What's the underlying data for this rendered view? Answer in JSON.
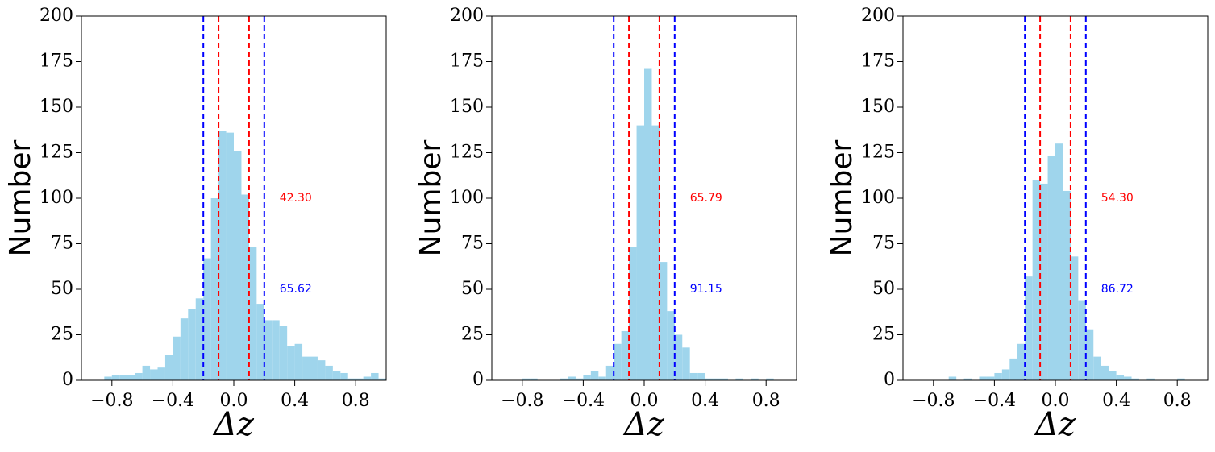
{
  "chart_data": [
    {
      "type": "histogram",
      "xlabel": "Δz",
      "ylabel": "Number",
      "color": "#9fd5ec",
      "bins": [
        -1,
        -0.95,
        -0.9,
        -0.85,
        -0.8,
        -0.75,
        -0.7,
        -0.65,
        -0.6,
        -0.55,
        -0.5,
        -0.45,
        -0.4,
        -0.35,
        -0.3,
        -0.25,
        -0.2,
        -0.15,
        -0.1,
        -0.05,
        0,
        0.05,
        0.1,
        0.15,
        0.2,
        0.25,
        0.3,
        0.35,
        0.4,
        0.45,
        0.5,
        0.55,
        0.6,
        0.65,
        0.7,
        0.75,
        0.8,
        0.85,
        0.9,
        0.95,
        1
      ],
      "values": [
        0,
        0,
        0,
        2,
        3,
        3,
        3,
        4,
        8,
        6,
        7,
        14,
        24,
        34,
        39,
        45,
        67,
        100,
        137,
        136,
        126,
        102,
        73,
        42,
        33,
        33,
        30,
        19,
        20,
        13,
        13,
        11,
        8,
        5,
        4,
        1,
        1,
        2,
        4,
        1
      ],
      "xlim": [
        -1,
        1
      ],
      "ylim": [
        0,
        200
      ],
      "xticks": [
        {
          "value": -0.8,
          "label": "−0.8"
        },
        {
          "value": -0.4,
          "label": "−0.4"
        },
        {
          "value": 0,
          "label": "0.0"
        },
        {
          "value": 0.4,
          "label": "0.4"
        },
        {
          "value": 0.8,
          "label": "0.8"
        }
      ],
      "yticks": [
        0,
        25,
        50,
        75,
        100,
        125,
        150,
        175,
        200
      ],
      "vlines": [
        {
          "x": -0.2,
          "color": "#0000ff"
        },
        {
          "x": -0.1,
          "color": "#ff0000"
        },
        {
          "x": 0.1,
          "color": "#ff0000"
        },
        {
          "x": 0.2,
          "color": "#0000ff"
        }
      ],
      "annotations": [
        {
          "text": "42.30",
          "x": 0.3,
          "y": 100,
          "color": "#ff0000"
        },
        {
          "text": "65.62",
          "x": 0.3,
          "y": 50,
          "color": "#0000ff"
        }
      ]
    },
    {
      "type": "histogram",
      "xlabel": "Δz",
      "ylabel": "Number",
      "color": "#9fd5ec",
      "bins": [
        -1,
        -0.95,
        -0.9,
        -0.85,
        -0.8,
        -0.75,
        -0.7,
        -0.65,
        -0.6,
        -0.55,
        -0.5,
        -0.45,
        -0.4,
        -0.35,
        -0.3,
        -0.25,
        -0.2,
        -0.15,
        -0.1,
        -0.05,
        0,
        0.05,
        0.1,
        0.15,
        0.2,
        0.25,
        0.3,
        0.35,
        0.4,
        0.45,
        0.5,
        0.55,
        0.6,
        0.65,
        0.7,
        0.75,
        0.8,
        0.85,
        0.9,
        0.95,
        1
      ],
      "values": [
        0,
        0,
        0,
        0,
        1,
        1,
        0,
        0,
        0,
        1,
        2,
        1,
        3,
        5,
        2,
        8,
        20,
        27,
        73,
        140,
        171,
        140,
        65,
        38,
        25,
        18,
        4,
        4,
        1,
        1,
        1,
        0,
        1,
        0,
        1,
        0,
        1,
        0,
        0,
        0
      ],
      "xlim": [
        -1,
        1
      ],
      "ylim": [
        0,
        200
      ],
      "xticks": [
        {
          "value": -0.8,
          "label": "−0.8"
        },
        {
          "value": -0.4,
          "label": "−0.4"
        },
        {
          "value": 0,
          "label": "0.0"
        },
        {
          "value": 0.4,
          "label": "0.4"
        },
        {
          "value": 0.8,
          "label": "0.8"
        }
      ],
      "yticks": [
        0,
        25,
        50,
        75,
        100,
        125,
        150,
        175,
        200
      ],
      "vlines": [
        {
          "x": -0.2,
          "color": "#0000ff"
        },
        {
          "x": -0.1,
          "color": "#ff0000"
        },
        {
          "x": 0.1,
          "color": "#ff0000"
        },
        {
          "x": 0.2,
          "color": "#0000ff"
        }
      ],
      "annotations": [
        {
          "text": "65.79",
          "x": 0.3,
          "y": 100,
          "color": "#ff0000"
        },
        {
          "text": "91.15",
          "x": 0.3,
          "y": 50,
          "color": "#0000ff"
        }
      ]
    },
    {
      "type": "histogram",
      "xlabel": "Δz",
      "ylabel": "Number",
      "color": "#9fd5ec",
      "bins": [
        -1,
        -0.95,
        -0.9,
        -0.85,
        -0.8,
        -0.75,
        -0.7,
        -0.65,
        -0.6,
        -0.55,
        -0.5,
        -0.45,
        -0.4,
        -0.35,
        -0.3,
        -0.25,
        -0.2,
        -0.15,
        -0.1,
        -0.05,
        0,
        0.05,
        0.1,
        0.15,
        0.2,
        0.25,
        0.3,
        0.35,
        0.4,
        0.45,
        0.5,
        0.55,
        0.6,
        0.65,
        0.7,
        0.75,
        0.8,
        0.85,
        0.9,
        0.95,
        1
      ],
      "values": [
        0,
        0,
        0,
        0,
        0,
        0,
        2,
        0,
        1,
        0,
        2,
        2,
        4,
        6,
        12,
        20,
        57,
        110,
        108,
        123,
        130,
        104,
        68,
        44,
        28,
        13,
        8,
        5,
        3,
        2,
        1,
        0,
        1,
        0,
        0,
        0,
        1,
        0,
        0,
        0
      ],
      "xlim": [
        -1,
        1
      ],
      "ylim": [
        0,
        200
      ],
      "xticks": [
        {
          "value": -0.8,
          "label": "−0.8"
        },
        {
          "value": -0.4,
          "label": "−0.4"
        },
        {
          "value": 0,
          "label": "0.0"
        },
        {
          "value": 0.4,
          "label": "0.4"
        },
        {
          "value": 0.8,
          "label": "0.8"
        }
      ],
      "yticks": [
        0,
        25,
        50,
        75,
        100,
        125,
        150,
        175,
        200
      ],
      "vlines": [
        {
          "x": -0.2,
          "color": "#0000ff"
        },
        {
          "x": -0.1,
          "color": "#ff0000"
        },
        {
          "x": 0.1,
          "color": "#ff0000"
        },
        {
          "x": 0.2,
          "color": "#0000ff"
        }
      ],
      "annotations": [
        {
          "text": "54.30",
          "x": 0.3,
          "y": 100,
          "color": "#ff0000"
        },
        {
          "text": "86.72",
          "x": 0.3,
          "y": 50,
          "color": "#0000ff"
        }
      ]
    }
  ]
}
